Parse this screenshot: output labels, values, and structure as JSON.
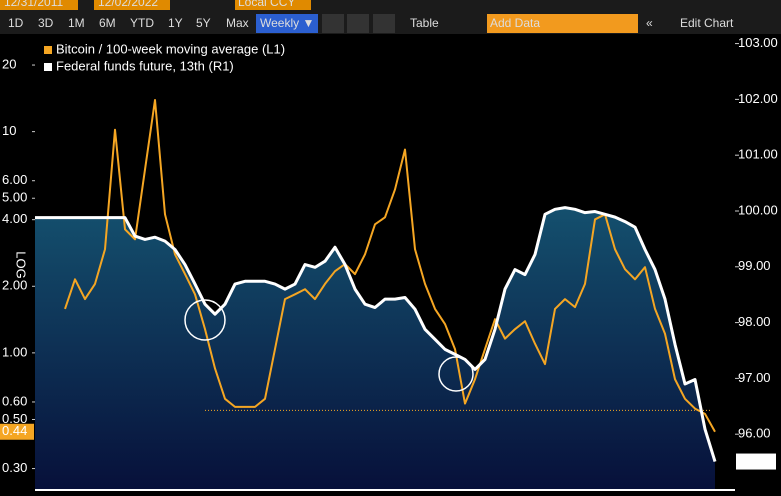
{
  "toolbar": {
    "start_date": "12/31/2011",
    "end_date": "12/02/2022",
    "currency": "Local CCY",
    "ranges": [
      "1D",
      "3D",
      "1M",
      "6M",
      "YTD",
      "1Y",
      "5Y",
      "Max"
    ],
    "frequency": "Weekly ▼",
    "table": "Table",
    "add_data": "Add Data",
    "collapse": "«",
    "edit": "Edit Chart"
  },
  "chart_data": {
    "type": "line",
    "log_y": true,
    "y_label": "LOG",
    "ylim": [
      0.24,
      26.5
    ],
    "yticks": [
      {
        "value": 0.3,
        "label": "0.30"
      },
      {
        "value": 0.5,
        "label": "0.50"
      },
      {
        "value": 0.6,
        "label": "0.60"
      },
      {
        "value": 1,
        "label": "1.00"
      },
      {
        "value": 2,
        "label": "2.00"
      },
      {
        "value": 4,
        "label": "4.00"
      },
      {
        "value": 5,
        "label": "5.00"
      },
      {
        "value": 6,
        "label": "6.00"
      },
      10,
      20
    ],
    "y2lim": [
      95.0,
      103.1
    ],
    "y2ticks": [
      {
        "value": 96,
        "label": "96.00"
      },
      {
        "value": 97,
        "label": "97.00"
      },
      {
        "value": 98,
        "label": "98.00"
      },
      {
        "value": 99,
        "label": "99.00"
      },
      {
        "value": 100,
        "label": "100.00"
      },
      {
        "value": 101,
        "label": "101.00"
      },
      {
        "value": 102,
        "label": "102.00"
      },
      {
        "value": 103,
        "label": "103.00"
      }
    ],
    "hline": 0.55,
    "series": [
      {
        "name": "Bitcoin / 100-week moving average (L1)",
        "color": "#f5a623",
        "axis": "y",
        "values": [
          null,
          null,
          null,
          1.58,
          2.15,
          1.75,
          2.05,
          2.94,
          10.2,
          3.62,
          3.26,
          6.74,
          13.9,
          4.23,
          2.79,
          2.27,
          1.84,
          1.28,
          0.85,
          0.62,
          0.57,
          0.57,
          0.57,
          0.62,
          1.04,
          1.75,
          1.84,
          1.94,
          1.75,
          2.05,
          2.34,
          2.52,
          2.27,
          2.79,
          3.81,
          4.1,
          5.48,
          8.3,
          2.94,
          2.05,
          1.58,
          1.35,
          1.04,
          0.59,
          0.76,
          1.04,
          1.42,
          1.16,
          1.28,
          1.39,
          1.1,
          0.89,
          1.58,
          1.75,
          1.61,
          2.05,
          4.01,
          4.23,
          2.94,
          2.39,
          2.15,
          2.44,
          1.58,
          1.22,
          0.76,
          0.62,
          0.56,
          0.53,
          0.44
        ]
      },
      {
        "name": "Federal funds future, 13th (R1)",
        "color": "#ffffff",
        "axis": "y2",
        "area": true,
        "values": [
          99.88,
          99.88,
          99.88,
          99.88,
          99.88,
          99.88,
          99.88,
          99.88,
          99.88,
          99.88,
          99.55,
          99.49,
          99.53,
          99.46,
          99.31,
          99.04,
          98.69,
          98.33,
          98.15,
          98.33,
          98.69,
          98.74,
          98.74,
          98.74,
          98.69,
          98.6,
          98.69,
          99.04,
          98.99,
          99.1,
          99.35,
          99.04,
          98.6,
          98.33,
          98.27,
          98.42,
          98.42,
          98.45,
          98.24,
          97.88,
          97.7,
          97.52,
          97.43,
          97.34,
          97.16,
          97.34,
          97.88,
          98.6,
          98.95,
          98.86,
          99.22,
          99.94,
          100.03,
          100.06,
          100.03,
          99.97,
          99.99,
          99.94,
          99.89,
          99.81,
          99.71,
          99.31,
          98.95,
          98.42,
          97.61,
          96.9,
          96.98,
          96.09,
          95.51
        ]
      }
    ]
  }
}
